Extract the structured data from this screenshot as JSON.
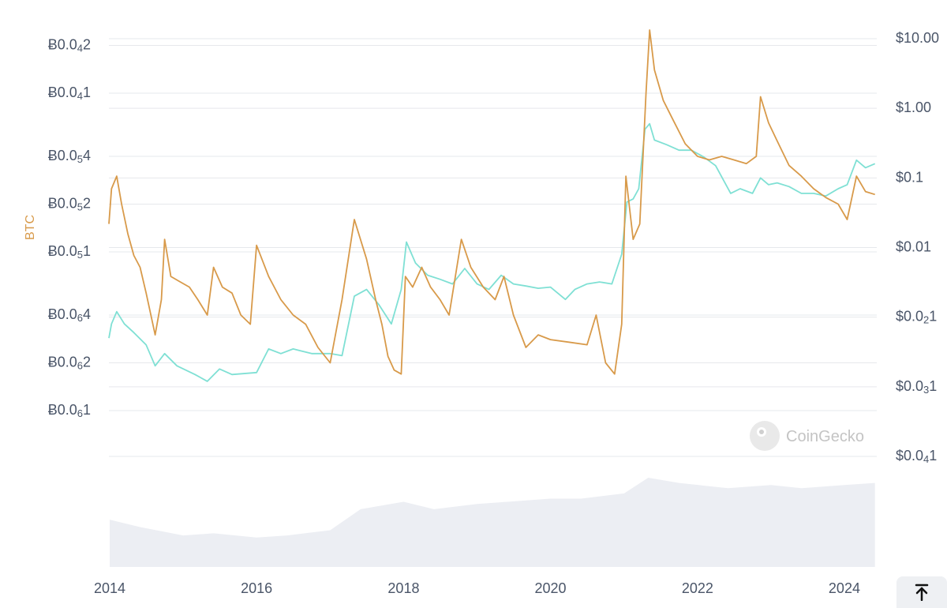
{
  "chart_data": {
    "type": "line",
    "title": "",
    "ylabel_left": "BTC",
    "ylabel_right": "",
    "x_ticks": [
      "2014",
      "2016",
      "2018",
      "2020",
      "2022",
      "2024"
    ],
    "y_left_ticks": [
      {
        "text": "Ƀ0.0",
        "sub": "4",
        "tail": "2",
        "value": 2e-05
      },
      {
        "text": "Ƀ0.0",
        "sub": "4",
        "tail": "1",
        "value": 1e-05
      },
      {
        "text": "Ƀ0.0",
        "sub": "5",
        "tail": "4",
        "value": 4e-06
      },
      {
        "text": "Ƀ0.0",
        "sub": "5",
        "tail": "2",
        "value": 2e-06
      },
      {
        "text": "Ƀ0.0",
        "sub": "5",
        "tail": "1",
        "value": 1e-06
      },
      {
        "text": "Ƀ0.0",
        "sub": "6",
        "tail": "4",
        "value": 4e-07
      },
      {
        "text": "Ƀ0.0",
        "sub": "6",
        "tail": "2",
        "value": 2e-07
      },
      {
        "text": "Ƀ0.0",
        "sub": "6",
        "tail": "1",
        "value": 1e-07
      }
    ],
    "y_right_ticks": [
      {
        "text": "$10.00",
        "sub": "",
        "tail": "",
        "value": 10
      },
      {
        "text": "$1.00",
        "sub": "",
        "tail": "",
        "value": 1
      },
      {
        "text": "$0.1",
        "sub": "",
        "tail": "",
        "value": 0.1
      },
      {
        "text": "$0.01",
        "sub": "",
        "tail": "",
        "value": 0.01
      },
      {
        "text": "$0.0",
        "sub": "2",
        "tail": "1",
        "value": 0.001
      },
      {
        "text": "$0.0",
        "sub": "3",
        "tail": "1",
        "value": 0.0001
      },
      {
        "text": "$0.0",
        "sub": "4",
        "tail": "1",
        "value": 1e-05
      }
    ],
    "y_left_scale": "log",
    "y_right_scale": "log",
    "grid": true,
    "series": [
      {
        "name": "",
        "axis": "left",
        "color": "#d89a4a",
        "points": [
          [
            "2013-12-28",
            1.5e-06
          ],
          [
            "2014-01-10",
            2.5e-06
          ],
          [
            "2014-02-05",
            3e-06
          ],
          [
            "2014-03-01",
            2e-06
          ],
          [
            "2014-04-01",
            1.3e-06
          ],
          [
            "2014-05-01",
            9.5e-07
          ],
          [
            "2014-06-01",
            8e-07
          ],
          [
            "2014-07-01",
            5.5e-07
          ],
          [
            "2014-08-15",
            3e-07
          ],
          [
            "2014-09-15",
            5e-07
          ],
          [
            "2014-10-01",
            1.2e-06
          ],
          [
            "2014-11-01",
            7e-07
          ],
          [
            "2014-12-15",
            6.5e-07
          ],
          [
            "2015-02-01",
            6e-07
          ],
          [
            "2015-03-15",
            5e-07
          ],
          [
            "2015-05-01",
            4e-07
          ],
          [
            "2015-06-01",
            8e-07
          ],
          [
            "2015-07-15",
            6e-07
          ],
          [
            "2015-09-01",
            5.5e-07
          ],
          [
            "2015-10-15",
            4e-07
          ],
          [
            "2015-12-01",
            3.5e-07
          ],
          [
            "2016-01-01",
            1.1e-06
          ],
          [
            "2016-03-01",
            7e-07
          ],
          [
            "2016-05-01",
            5e-07
          ],
          [
            "2016-07-01",
            4e-07
          ],
          [
            "2016-09-01",
            3.5e-07
          ],
          [
            "2016-11-01",
            2.5e-07
          ],
          [
            "2017-01-01",
            2e-07
          ],
          [
            "2017-03-01",
            5e-07
          ],
          [
            "2017-05-01",
            1.6e-06
          ],
          [
            "2017-07-01",
            9e-07
          ],
          [
            "2017-08-15",
            5e-07
          ],
          [
            "2017-09-15",
            3.5e-07
          ],
          [
            "2017-10-15",
            2.2e-07
          ],
          [
            "2017-11-15",
            1.8e-07
          ],
          [
            "2017-12-20",
            1.7e-07
          ],
          [
            "2018-01-10",
            7e-07
          ],
          [
            "2018-02-15",
            6e-07
          ],
          [
            "2018-04-01",
            8e-07
          ],
          [
            "2018-05-15",
            6e-07
          ],
          [
            "2018-07-01",
            5e-07
          ],
          [
            "2018-08-15",
            4e-07
          ],
          [
            "2018-10-15",
            1.2e-06
          ],
          [
            "2018-12-01",
            8e-07
          ],
          [
            "2019-02-01",
            6e-07
          ],
          [
            "2019-04-01",
            5e-07
          ],
          [
            "2019-05-15",
            7e-07
          ],
          [
            "2019-07-01",
            4e-07
          ],
          [
            "2019-09-01",
            2.5e-07
          ],
          [
            "2019-11-01",
            3e-07
          ],
          [
            "2020-01-01",
            2.8e-07
          ],
          [
            "2020-04-01",
            2.7e-07
          ],
          [
            "2020-07-01",
            2.6e-07
          ],
          [
            "2020-08-15",
            4e-07
          ],
          [
            "2020-10-01",
            2e-07
          ],
          [
            "2020-11-15",
            1.7e-07
          ],
          [
            "2020-12-20",
            3.5e-07
          ],
          [
            "2021-01-10",
            3e-06
          ],
          [
            "2021-02-15",
            1.2e-06
          ],
          [
            "2021-03-20",
            1.5e-06
          ],
          [
            "2021-04-20",
            1e-05
          ],
          [
            "2021-05-08",
            2.5e-05
          ],
          [
            "2021-06-01",
            1.4e-05
          ],
          [
            "2021-07-15",
            9e-06
          ],
          [
            "2021-09-01",
            6.8e-06
          ],
          [
            "2021-11-01",
            4.8e-06
          ],
          [
            "2022-01-01",
            4e-06
          ],
          [
            "2022-03-01",
            3.8e-06
          ],
          [
            "2022-05-01",
            4e-06
          ],
          [
            "2022-07-01",
            3.8e-06
          ],
          [
            "2022-09-01",
            3.6e-06
          ],
          [
            "2022-10-20",
            4e-06
          ],
          [
            "2022-11-10",
            9.5e-06
          ],
          [
            "2022-12-20",
            6.5e-06
          ],
          [
            "2023-02-01",
            5e-06
          ],
          [
            "2023-04-01",
            3.5e-06
          ],
          [
            "2023-06-01",
            3e-06
          ],
          [
            "2023-08-01",
            2.5e-06
          ],
          [
            "2023-10-01",
            2.2e-06
          ],
          [
            "2023-12-01",
            2e-06
          ],
          [
            "2024-01-15",
            1.6e-06
          ],
          [
            "2024-03-01",
            3e-06
          ],
          [
            "2024-04-15",
            2.4e-06
          ],
          [
            "2024-06-01",
            2.3e-06
          ]
        ]
      },
      {
        "name": "",
        "axis": "right",
        "color": "#7fe0d4",
        "points": [
          [
            "2013-12-28",
            0.0005
          ],
          [
            "2014-01-10",
            0.0008
          ],
          [
            "2014-02-05",
            0.0012
          ],
          [
            "2014-03-15",
            0.0008
          ],
          [
            "2014-05-01",
            0.0006
          ],
          [
            "2014-07-01",
            0.0004
          ],
          [
            "2014-08-15",
            0.0002
          ],
          [
            "2014-10-01",
            0.0003
          ],
          [
            "2014-12-01",
            0.0002
          ],
          [
            "2015-03-01",
            0.00015
          ],
          [
            "2015-05-01",
            0.00012
          ],
          [
            "2015-07-01",
            0.00018
          ],
          [
            "2015-09-01",
            0.00015
          ],
          [
            "2016-01-01",
            0.00016
          ],
          [
            "2016-03-01",
            0.00035
          ],
          [
            "2016-05-01",
            0.0003
          ],
          [
            "2016-07-01",
            0.00035
          ],
          [
            "2016-10-01",
            0.0003
          ],
          [
            "2017-01-01",
            0.0003
          ],
          [
            "2017-03-01",
            0.00028
          ],
          [
            "2017-05-01",
            0.002
          ],
          [
            "2017-07-01",
            0.0025
          ],
          [
            "2017-09-01",
            0.0015
          ],
          [
            "2017-11-01",
            0.0008
          ],
          [
            "2017-12-20",
            0.0025
          ],
          [
            "2018-01-15",
            0.012
          ],
          [
            "2018-03-01",
            0.006
          ],
          [
            "2018-05-01",
            0.004
          ],
          [
            "2018-07-01",
            0.0035
          ],
          [
            "2018-09-01",
            0.003
          ],
          [
            "2018-11-01",
            0.005
          ],
          [
            "2019-01-01",
            0.003
          ],
          [
            "2019-03-01",
            0.0025
          ],
          [
            "2019-05-01",
            0.004
          ],
          [
            "2019-07-01",
            0.003
          ],
          [
            "2019-09-01",
            0.0028
          ],
          [
            "2019-11-01",
            0.0026
          ],
          [
            "2020-01-01",
            0.0027
          ],
          [
            "2020-03-15",
            0.0018
          ],
          [
            "2020-05-01",
            0.0025
          ],
          [
            "2020-07-01",
            0.003
          ],
          [
            "2020-09-01",
            0.0032
          ],
          [
            "2020-11-01",
            0.003
          ],
          [
            "2020-12-20",
            0.008
          ],
          [
            "2021-01-15",
            0.045
          ],
          [
            "2021-02-15",
            0.05
          ],
          [
            "2021-03-15",
            0.07
          ],
          [
            "2021-04-15",
            0.5
          ],
          [
            "2021-05-08",
            0.6
          ],
          [
            "2021-06-01",
            0.35
          ],
          [
            "2021-08-01",
            0.3
          ],
          [
            "2021-10-01",
            0.25
          ],
          [
            "2021-12-01",
            0.25
          ],
          [
            "2022-02-01",
            0.2
          ],
          [
            "2022-04-01",
            0.15
          ],
          [
            "2022-06-15",
            0.06
          ],
          [
            "2022-08-01",
            0.07
          ],
          [
            "2022-10-01",
            0.06
          ],
          [
            "2022-11-10",
            0.1
          ],
          [
            "2022-12-20",
            0.08
          ],
          [
            "2023-02-01",
            0.085
          ],
          [
            "2023-04-01",
            0.075
          ],
          [
            "2023-06-01",
            0.06
          ],
          [
            "2023-08-01",
            0.06
          ],
          [
            "2023-10-01",
            0.055
          ],
          [
            "2023-12-01",
            0.07
          ],
          [
            "2024-01-15",
            0.08
          ],
          [
            "2024-03-01",
            0.18
          ],
          [
            "2024-04-15",
            0.14
          ],
          [
            "2024-06-01",
            0.16
          ]
        ]
      }
    ],
    "volume": [
      [
        "2014-01-01",
        0.45
      ],
      [
        "2014-06-01",
        0.38
      ],
      [
        "2015-01-01",
        0.3
      ],
      [
        "2015-06-01",
        0.32
      ],
      [
        "2016-01-01",
        0.28
      ],
      [
        "2016-06-01",
        0.3
      ],
      [
        "2017-01-01",
        0.35
      ],
      [
        "2017-06-01",
        0.55
      ],
      [
        "2018-01-01",
        0.62
      ],
      [
        "2018-06-01",
        0.55
      ],
      [
        "2019-01-01",
        0.6
      ],
      [
        "2019-06-01",
        0.62
      ],
      [
        "2020-01-01",
        0.65
      ],
      [
        "2020-06-01",
        0.65
      ],
      [
        "2021-01-01",
        0.7
      ],
      [
        "2021-05-01",
        0.85
      ],
      [
        "2021-10-01",
        0.8
      ],
      [
        "2022-06-01",
        0.75
      ],
      [
        "2023-01-01",
        0.78
      ],
      [
        "2023-06-01",
        0.75
      ],
      [
        "2024-01-01",
        0.78
      ],
      [
        "2024-06-01",
        0.8
      ]
    ],
    "x_range": [
      "2013-12-28",
      "2024-06-10"
    ]
  },
  "watermark": {
    "text": "CoinGecko"
  },
  "scroll_top": {
    "icon": "arrow-up-to-line-icon"
  },
  "colors": {
    "btc_series": "#d89a4a",
    "usd_series": "#7fe0d4",
    "volume": "#eceef3",
    "grid": "#e6e8ec",
    "tick_text": "#4a5568",
    "btc_label": "#d89a4a"
  }
}
